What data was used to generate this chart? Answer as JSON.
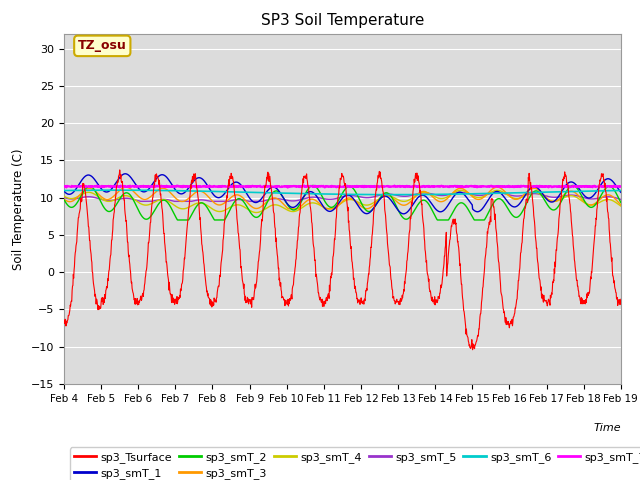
{
  "title": "SP3 Soil Temperature",
  "ylabel": "Soil Temperature (C)",
  "xlabel": "Time",
  "ylim": [
    -15,
    32
  ],
  "yticks": [
    -15,
    -10,
    -5,
    0,
    5,
    10,
    15,
    20,
    25,
    30
  ],
  "background_color": "#dcdcdc",
  "plot_bg_color": "#dcdcdc",
  "tz_label": "TZ_osu",
  "series_colors": {
    "sp3_Tsurface": "#ff0000",
    "sp3_smT_1": "#0000cc",
    "sp3_smT_2": "#00cc00",
    "sp3_smT_3": "#ff9900",
    "sp3_smT_4": "#cccc00",
    "sp3_smT_5": "#9933cc",
    "sp3_smT_6": "#00cccc",
    "sp3_smT_7": "#ff00ff"
  },
  "date_labels": [
    "Feb 4",
    "Feb 5",
    "Feb 6",
    "Feb 7",
    "Feb 8",
    "Feb 9",
    "Feb 10",
    "Feb 11",
    "Feb 12",
    "Feb 13",
    "Feb 14",
    "Feb 15",
    "Feb 16",
    "Feb 17",
    "Feb 18",
    "Feb 19"
  ],
  "n_days": 15,
  "pts_per_day": 96
}
